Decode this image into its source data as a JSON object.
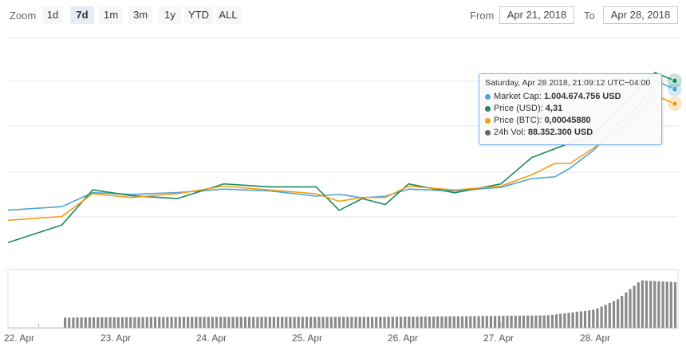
{
  "toolbar": {
    "zoom_label": "Zoom",
    "zoom_buttons": [
      "1d",
      "7d",
      "1m",
      "3m",
      "1y",
      "YTD",
      "ALL"
    ],
    "active_zoom": "7d",
    "from_label": "From",
    "from_value": "Apr 21, 2018",
    "to_label": "To",
    "to_value": "Apr 28, 2018"
  },
  "tooltip": {
    "header": "Saturday, Apr 28 2018, 21:09:12 UTC−04:00",
    "rows": [
      {
        "label": "Market Cap:",
        "value": "1.004.674.756 USD",
        "color": "#4ca6d8"
      },
      {
        "label": "Price (USD):",
        "value": "4,31",
        "color": "#1a8a5a"
      },
      {
        "label": "Price (BTC):",
        "value": "0,00045880",
        "color": "#f39c12"
      },
      {
        "label": "24h Vol:",
        "value": "88.352.300 USD",
        "color": "#666666"
      }
    ]
  },
  "colors": {
    "market_cap": "#4ca6d8",
    "price_usd": "#1a8a5a",
    "price_btc": "#f39c12",
    "volume": "#8a8a8a",
    "grid": "#e6e6e6"
  },
  "chart_data": {
    "type": "line",
    "x_ticks": [
      "22. Apr",
      "23. Apr",
      "24. Apr",
      "25. Apr",
      "26. Apr",
      "27. Apr",
      "28. Apr"
    ],
    "x_start": "2018-04-21T16:00",
    "x_end": "2018-04-28T22:00",
    "series": [
      {
        "name": "Market Cap",
        "unit": "USD",
        "x": [
          "2018-04-21T16:00",
          "2018-04-22T06:00",
          "2018-04-22T14:00",
          "2018-04-23T00:00",
          "2018-04-23T12:00",
          "2018-04-24T00:00",
          "2018-04-24T12:00",
          "2018-04-25T00:00",
          "2018-04-25T06:00",
          "2018-04-25T12:00",
          "2018-04-25T18:00",
          "2018-04-26T00:00",
          "2018-04-26T12:00",
          "2018-04-27T00:00",
          "2018-04-27T08:00",
          "2018-04-27T14:00",
          "2018-04-27T18:00",
          "2018-04-28T00:00",
          "2018-04-28T06:00",
          "2018-04-28T12:00",
          "2018-04-28T16:00",
          "2018-04-28T21:09"
        ],
        "values": [
          660000000,
          670000000,
          710000000,
          705000000,
          710000000,
          720000000,
          715000000,
          700000000,
          705000000,
          695000000,
          700000000,
          720000000,
          715000000,
          725000000,
          750000000,
          755000000,
          780000000,
          830000000,
          900000000,
          960000000,
          1030000000,
          1004674756
        ]
      },
      {
        "name": "Price (USD)",
        "unit": "USD",
        "x": [
          "2018-04-21T16:00",
          "2018-04-22T06:00",
          "2018-04-22T14:00",
          "2018-04-23T00:00",
          "2018-04-23T12:00",
          "2018-04-24T00:00",
          "2018-04-24T12:00",
          "2018-04-25T00:00",
          "2018-04-25T06:00",
          "2018-04-25T12:00",
          "2018-04-25T18:00",
          "2018-04-26T00:00",
          "2018-04-26T12:00",
          "2018-04-27T00:00",
          "2018-04-27T08:00",
          "2018-04-27T14:00",
          "2018-04-27T18:00",
          "2018-04-28T00:00",
          "2018-04-28T06:00",
          "2018-04-28T12:00",
          "2018-04-28T16:00",
          "2018-04-28T21:09"
        ],
        "values": [
          1.55,
          1.85,
          2.45,
          2.35,
          2.3,
          2.55,
          2.5,
          2.5,
          2.1,
          2.3,
          2.2,
          2.55,
          2.4,
          2.55,
          3.0,
          3.15,
          3.25,
          3.4,
          3.8,
          4.2,
          4.45,
          4.31
        ]
      },
      {
        "name": "Price (BTC)",
        "unit": "BTC",
        "x": [
          "2018-04-21T16:00",
          "2018-04-22T06:00",
          "2018-04-22T14:00",
          "2018-04-23T00:00",
          "2018-04-23T12:00",
          "2018-04-24T00:00",
          "2018-04-24T12:00",
          "2018-04-25T00:00",
          "2018-04-25T06:00",
          "2018-04-25T12:00",
          "2018-04-25T18:00",
          "2018-04-26T00:00",
          "2018-04-26T12:00",
          "2018-04-27T00:00",
          "2018-04-27T08:00",
          "2018-04-27T14:00",
          "2018-04-27T18:00",
          "2018-04-28T00:00",
          "2018-04-28T06:00",
          "2018-04-28T12:00",
          "2018-04-28T16:00",
          "2018-04-28T21:09"
        ],
        "values": [
          0.000305,
          0.00031,
          0.00034,
          0.000335,
          0.00034,
          0.00035,
          0.000345,
          0.00034,
          0.00033,
          0.000335,
          0.000335,
          0.00035,
          0.000345,
          0.00035,
          0.000365,
          0.00038,
          0.00038,
          0.0004,
          0.00042,
          0.00045,
          0.00047,
          0.0004588
        ]
      },
      {
        "name": "24h Vol",
        "unit": "USD",
        "x": [
          "2018-04-21T16:00",
          "2018-04-22T12:00",
          "2018-04-23T12:00",
          "2018-04-24T12:00",
          "2018-04-25T12:00",
          "2018-04-26T12:00",
          "2018-04-27T12:00",
          "2018-04-28T00:00",
          "2018-04-28T06:00",
          "2018-04-28T12:00",
          "2018-04-28T21:09"
        ],
        "values": [
          18000000,
          20000000,
          21000000,
          21000000,
          21000000,
          22000000,
          24000000,
          35000000,
          55000000,
          92000000,
          88352300
        ]
      }
    ],
    "legend": "none",
    "grid": true
  }
}
